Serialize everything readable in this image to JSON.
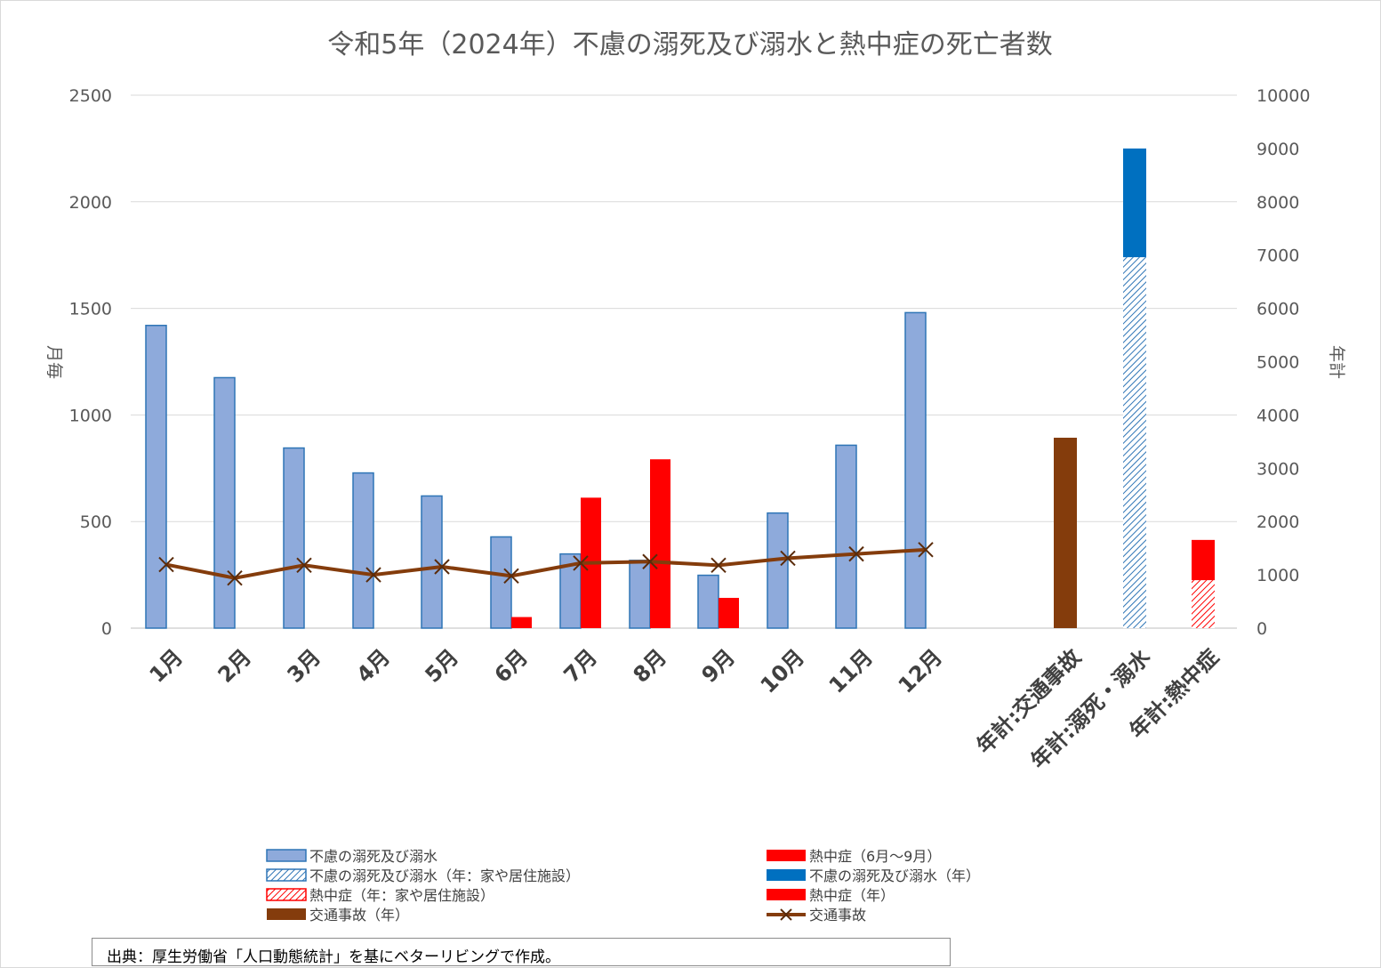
{
  "chart_data": {
    "type": "bar",
    "title": "令和5年（2024年）不慮の溺死及び溺水と熱中症の死亡者数",
    "ylabel_left": "月毎",
    "ylabel_right": "年計",
    "ylim_left": [
      0,
      2500
    ],
    "ylim_right": [
      0,
      10000
    ],
    "yticks_left": [
      "0",
      "500",
      "1000",
      "1500",
      "2000",
      "2500"
    ],
    "yticks_right": [
      "0",
      "1000",
      "2000",
      "3000",
      "4000",
      "5000",
      "6000",
      "7000",
      "8000",
      "9000",
      "10000"
    ],
    "grid": true,
    "legend_position": "bottom",
    "categories": [
      "1月",
      "2月",
      "3月",
      "4月",
      "5月",
      "6月",
      "7月",
      "8月",
      "9月",
      "10月",
      "11月",
      "12月",
      "年計:交通事故",
      "年計:溺死・溺水",
      "年計:熱中症"
    ],
    "series": [
      {
        "name": "不慮の溺死及び溺水",
        "axis": "left",
        "color": "#8eaadb",
        "values": [
          1420,
          1175,
          845,
          728,
          620,
          428,
          348,
          318,
          248,
          540,
          858,
          1480,
          null,
          null,
          null
        ]
      },
      {
        "name": "熱中症（6月～9月）",
        "axis": "left",
        "color": "#ff0000",
        "values": [
          null,
          null,
          null,
          null,
          null,
          52,
          612,
          792,
          142,
          null,
          null,
          null,
          null,
          null,
          null
        ]
      },
      {
        "name": "交通事故",
        "axis": "left",
        "type": "line",
        "color": "#843c0c",
        "values": [
          298,
          235,
          295,
          250,
          288,
          245,
          305,
          312,
          295,
          328,
          348,
          368,
          null,
          null,
          null
        ]
      },
      {
        "name": "交通事故（年）",
        "axis": "right",
        "color": "#843c0c",
        "values": [
          null,
          null,
          null,
          null,
          null,
          null,
          null,
          null,
          null,
          null,
          null,
          null,
          3573,
          null,
          null
        ]
      },
      {
        "name": "不慮の溺死及び溺水（年：家や居住施設）",
        "axis": "right",
        "color": "#dae8f7",
        "pattern": "hatch-blue",
        "stack": "drown",
        "values": [
          null,
          null,
          null,
          null,
          null,
          null,
          null,
          null,
          null,
          null,
          null,
          null,
          null,
          6960,
          null
        ]
      },
      {
        "name": "不慮の溺死及び溺水（年）",
        "axis": "right",
        "color": "#0070c0",
        "stack": "drown",
        "values": [
          null,
          null,
          null,
          null,
          null,
          null,
          null,
          null,
          null,
          null,
          null,
          null,
          null,
          2040,
          null
        ]
      },
      {
        "name": "熱中症（年：家や居住施設）",
        "axis": "right",
        "color": "#ff0000",
        "pattern": "hatch-red",
        "stack": "heat",
        "values": [
          null,
          null,
          null,
          null,
          null,
          null,
          null,
          null,
          null,
          null,
          null,
          null,
          null,
          null,
          900
        ]
      },
      {
        "name": "熱中症（年）",
        "axis": "right",
        "color": "#ff0000",
        "stack": "heat",
        "values": [
          null,
          null,
          null,
          null,
          null,
          null,
          null,
          null,
          null,
          null,
          null,
          null,
          null,
          null,
          755
        ]
      }
    ],
    "legend": [
      {
        "label": "不慮の溺死及び溺水",
        "swatch": "bar-light-blue"
      },
      {
        "label": "熱中症（6月～9月）",
        "swatch": "bar-red"
      },
      {
        "label": "不慮の溺死及び溺水（年：家や居住施設）",
        "swatch": "hatch-blue"
      },
      {
        "label": "不慮の溺死及び溺水（年）",
        "swatch": "bar-blue"
      },
      {
        "label": "熱中症（年：家や居住施設）",
        "swatch": "hatch-red"
      },
      {
        "label": "熱中症（年）",
        "swatch": "bar-red"
      },
      {
        "label": "交通事故（年）",
        "swatch": "bar-brown"
      },
      {
        "label": "交通事故",
        "swatch": "line-brown-x"
      }
    ]
  },
  "source_note": "出典：厚生労働省「人口動態統計」を基にベターリビングで作成。"
}
